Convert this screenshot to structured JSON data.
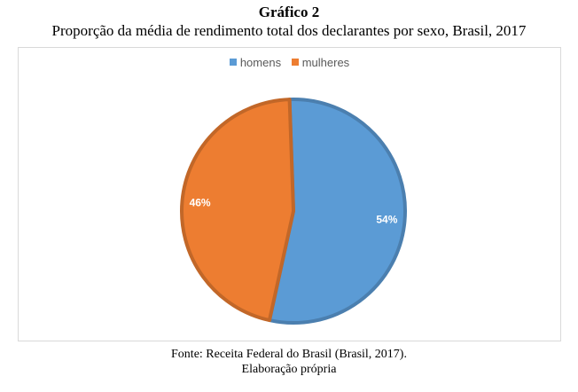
{
  "figure": {
    "title": "Gráfico 2",
    "subtitle": "Proporção da média de rendimento total dos declarantes por sexo, Brasil, 2017",
    "source": "Fonte: Receita Federal do Brasil (Brasil, 2017).",
    "note": "Elaboração própria"
  },
  "chart_data": {
    "type": "pie",
    "legend_position": "top",
    "slices": [
      {
        "label": "homens",
        "value": 54,
        "display": "54%",
        "color": "#5b9bd5"
      },
      {
        "label": "mulheres",
        "value": 46,
        "display": "46%",
        "color": "#ed7d31"
      }
    ]
  }
}
